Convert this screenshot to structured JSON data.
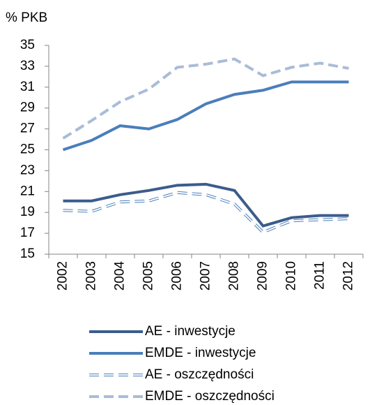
{
  "chart_data": {
    "type": "line",
    "y_label": "% PKB",
    "categories": [
      "2002",
      "2003",
      "2004",
      "2005",
      "2006",
      "2007",
      "2008",
      "2009",
      "2010",
      "2011",
      "2012"
    ],
    "ylim": [
      15,
      35
    ],
    "yticks": [
      15,
      17,
      19,
      21,
      23,
      25,
      27,
      29,
      31,
      33,
      35
    ],
    "series": [
      {
        "name": "AE - inwestycje",
        "color": "#3b5c8c",
        "style": "solid",
        "values": [
          20.1,
          20.1,
          20.7,
          21.1,
          21.6,
          21.7,
          21.1,
          17.7,
          18.5,
          18.7,
          18.7
        ]
      },
      {
        "name": "EMDE - inwestycje",
        "color": "#4a7ebb",
        "style": "solid",
        "values": [
          25.0,
          25.9,
          27.3,
          27.0,
          27.9,
          29.4,
          30.3,
          30.7,
          31.5,
          31.5,
          31.5
        ]
      },
      {
        "name": "AE - oszczędności",
        "color": "#4a7ebb",
        "style": "hollow-dashed",
        "values": [
          19.2,
          19.1,
          20.0,
          20.1,
          20.9,
          20.7,
          19.8,
          17.1,
          18.2,
          18.3,
          18.4
        ]
      },
      {
        "name": "EMDE - oszczędności",
        "color": "#a9bcd8",
        "style": "dashed",
        "values": [
          26.1,
          27.8,
          29.6,
          30.8,
          32.9,
          33.2,
          33.7,
          32.1,
          32.9,
          33.3,
          32.8
        ]
      }
    ]
  }
}
